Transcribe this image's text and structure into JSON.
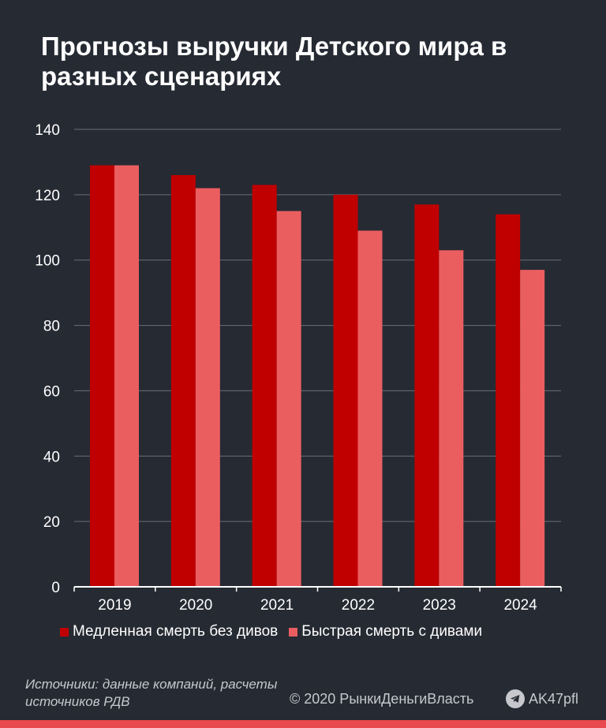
{
  "title": "Прогнозы выручки Детского мира в разных сценариях",
  "chart_data": {
    "type": "bar",
    "title": "Прогнозы выручки Детского мира в разных сценариях",
    "categories": [
      "2019",
      "2020",
      "2021",
      "2022",
      "2023",
      "2024"
    ],
    "series": [
      {
        "name": "Медленная смерть без дивов",
        "values": [
          129,
          126,
          123,
          120,
          117,
          114
        ],
        "color": "#c00000"
      },
      {
        "name": "Быстрая смерть с дивами",
        "values": [
          129,
          122,
          115,
          109,
          103,
          97
        ],
        "color": "#eb5e60"
      }
    ],
    "yticks": [
      0,
      20,
      40,
      60,
      80,
      100,
      120,
      140
    ],
    "ylim": [
      0,
      140
    ],
    "grid": true,
    "legend_position": "bottom",
    "xlabel": "",
    "ylabel": ""
  },
  "legend": {
    "slow_label": "Медленная смерть без дивов",
    "fast_label": "Быстрая смерть с дивами"
  },
  "colors": {
    "background": "#262a33",
    "slow": "#c00000",
    "fast": "#eb5e60",
    "grid": "#6a6e78",
    "accent_bar": "#e94a4f"
  },
  "footer": {
    "source": "Источники: данные компаний, расчеты источников РДВ",
    "copyright": "© 2020  РынкиДеньгиВласть",
    "telegram_handle": "AK47pfl",
    "telegram_icon": "telegram-icon"
  }
}
